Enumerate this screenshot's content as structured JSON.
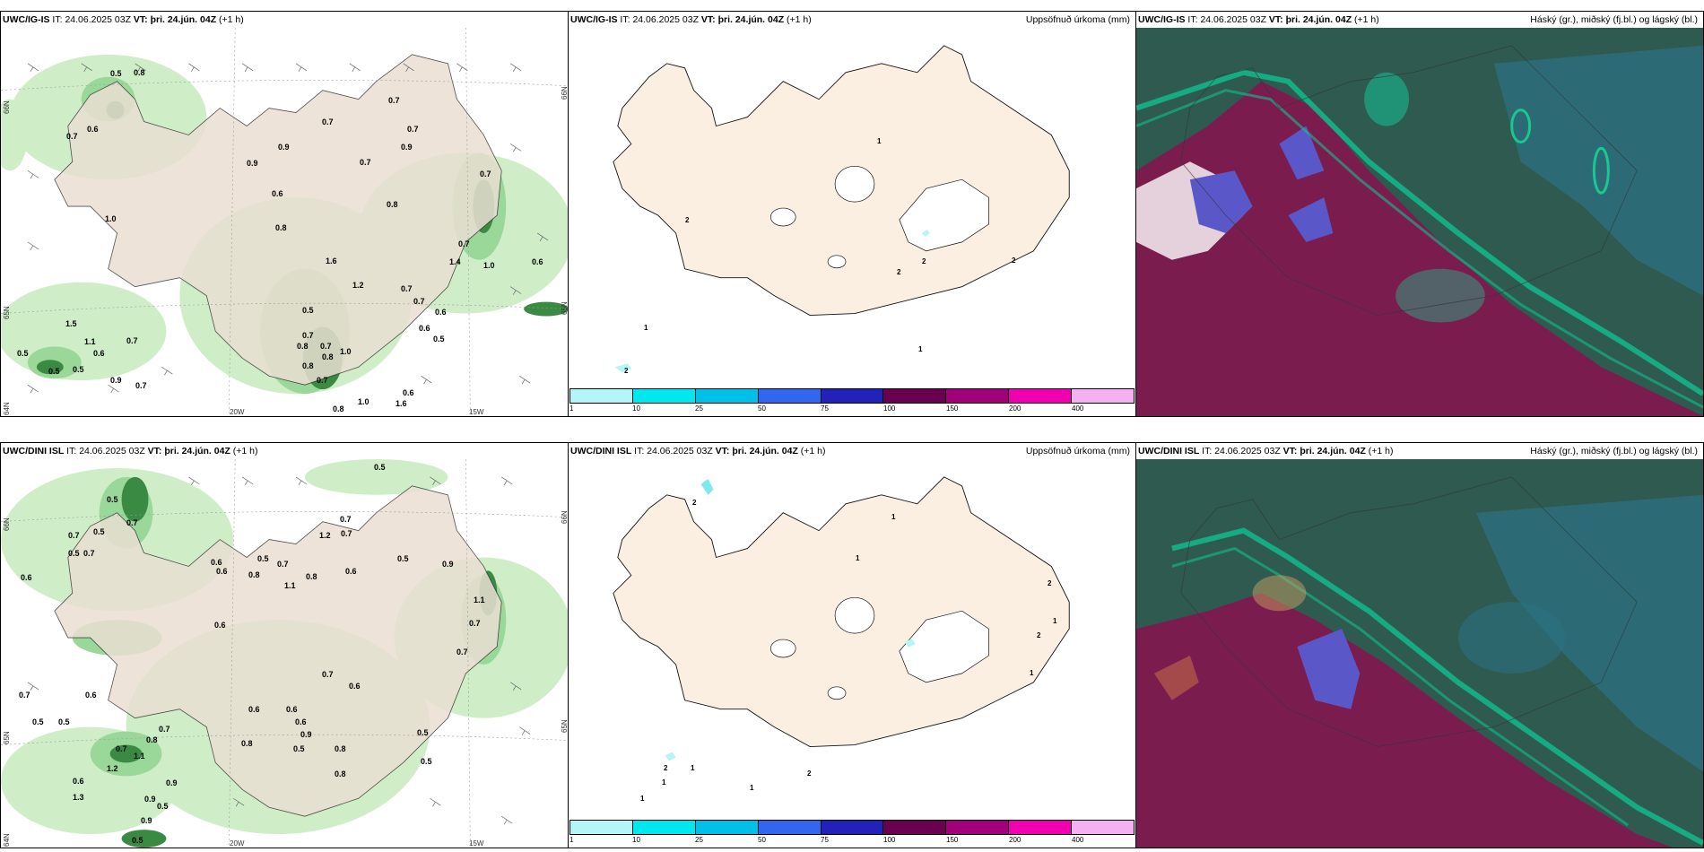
{
  "panels": [
    {
      "id": "p1",
      "model": "UWC/IG-IS",
      "it_label": "IT:",
      "it_value": "24.06.2025 03Z",
      "vt_label": "VT:",
      "vt_value": "þri. 24.jún. 04Z",
      "lead": "(+1 h)",
      "right_title": "",
      "lat_labels": [
        "66N",
        "65N",
        "64N"
      ],
      "lat_labels_right": [
        "66N",
        "65N"
      ],
      "lon_labels": [
        "20W",
        "15W"
      ],
      "values": [
        "0.5",
        "0.8",
        "0.7",
        "0.6",
        "0.7",
        "0.7",
        "0.9",
        "0.7",
        "0.9",
        "0.7",
        "0.9",
        "0.6",
        "0.8",
        "1.0",
        "1.6",
        "1.2",
        "0.5",
        "0.7",
        "0.7",
        "0.6",
        "0.6",
        "0.5",
        "0.5",
        "1.5",
        "1.1",
        "0.6",
        "0.7",
        "0.5",
        "0.5",
        "0.9",
        "0.7",
        "0.7",
        "0.8",
        "0.7",
        "0.8",
        "1.0",
        "0.8",
        "1.0",
        "0.8",
        "0.7",
        "0.7",
        "1.4",
        "0.7",
        "0.6",
        "1.0",
        "0.6",
        "1.6",
        "0.8"
      ]
    },
    {
      "id": "p2",
      "model": "UWC/IG-IS",
      "it_label": "IT:",
      "it_value": "24.06.2025 03Z",
      "vt_label": "VT:",
      "vt_value": "þri. 24.jún. 04Z",
      "lead": "(+1 h)",
      "right_title": "Uppsöfnuð úrkoma (mm)",
      "values": [
        "1",
        "2",
        "2",
        "2",
        "2",
        "1",
        "2",
        "1",
        "1",
        "1"
      ]
    },
    {
      "id": "p3",
      "model": "UWC/IG-IS",
      "it_label": "IT:",
      "it_value": "24.06.2025 03Z",
      "vt_label": "VT:",
      "vt_value": "þri. 24.jún. 04Z",
      "lead": "(+1 h)",
      "right_title": "Háský (gr.), miðský (fj.bl.) og lágský (bl.)"
    },
    {
      "id": "p4",
      "model": "UWC/DINI ISL",
      "it_label": "IT:",
      "it_value": "24.06.2025 03Z",
      "vt_label": "VT:",
      "vt_value": "þri. 24.jún. 04Z",
      "lead": "(+1 h)",
      "right_title": "",
      "lat_labels": [
        "66N",
        "65N",
        "64N"
      ],
      "lat_labels_right": [
        "66N",
        "65N"
      ],
      "lon_labels": [
        "20W",
        "15W"
      ],
      "values": [
        "0.5",
        "0.5",
        "0.5",
        "0.7",
        "0.7",
        "0.5",
        "0.7",
        "0.6",
        "0.5",
        "0.7",
        "0.9",
        "0.6",
        "0.8",
        "1.1",
        "0.8",
        "0.6",
        "0.5",
        "0.6",
        "0.7",
        "0.7",
        "1.2",
        "0.6",
        "1.1",
        "0.7",
        "0.7",
        "0.6",
        "0.7",
        "0.6",
        "0.7",
        "0.5",
        "0.5",
        "0.6",
        "0.6",
        "0.9",
        "0.8",
        "0.7",
        "0.5",
        "0.8",
        "0.5",
        "0.8",
        "1.2",
        "1.1",
        "0.7",
        "0.6",
        "0.9",
        "0.5",
        "0.9",
        "0.9",
        "0.5",
        "0.6",
        "1.3",
        "0.5",
        "0.8"
      ]
    },
    {
      "id": "p5",
      "model": "UWC/DINI ISL",
      "it_label": "IT:",
      "it_value": "24.06.2025 03Z",
      "vt_label": "VT:",
      "vt_value": "þri. 24.jún. 04Z",
      "lead": "(+1 h)",
      "right_title": "Uppsöfnuð úrkoma (mm)",
      "values": [
        "2",
        "1",
        "1",
        "2",
        "2",
        "1",
        "1",
        "2",
        "1",
        "1",
        "2",
        "1",
        "1"
      ]
    },
    {
      "id": "p6",
      "model": "UWC/DINI ISL",
      "it_label": "IT:",
      "it_value": "24.06.2025 03Z",
      "vt_label": "VT:",
      "vt_value": "þri. 24.jún. 04Z",
      "lead": "(+1 h)",
      "right_title": "Háský (gr.), miðský (fj.bl.) og lágský (bl.)"
    }
  ],
  "colorbar": {
    "ticks": [
      "1",
      "10",
      "25",
      "50",
      "75",
      "100",
      "150",
      "200",
      "400"
    ],
    "colors": [
      "#b4f5f8",
      "#00e8ee",
      "#00c0e8",
      "#3366ee",
      "#2222bb",
      "#6a0050",
      "#a0007a",
      "#f000b0",
      "#f4b0f0"
    ]
  }
}
